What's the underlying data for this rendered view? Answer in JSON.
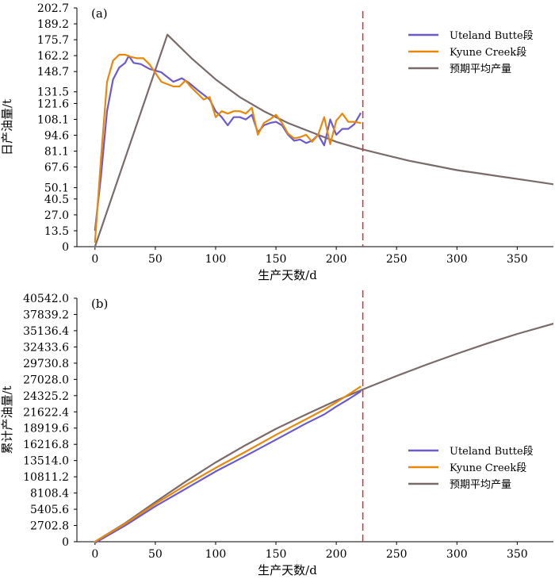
{
  "colors": {
    "uteland": "#6a5acd",
    "kyune": "#e8880a",
    "forecast": "#7a6a6a",
    "cutoff": "#d0303a",
    "axis": "#000000"
  },
  "chart_data": [
    {
      "type": "line",
      "panel_label": "(a)",
      "xlabel": "生产天数/d",
      "ylabel": "日产油量/t",
      "xlim": [
        -15,
        380
      ],
      "ylim": [
        0,
        202.7
      ],
      "xticks": [
        0,
        50,
        100,
        150,
        200,
        250,
        300,
        350
      ],
      "xtick_labels": [
        "0",
        "50",
        "100",
        "150",
        "200",
        "250",
        "300",
        "350"
      ],
      "yticks": [
        0,
        13.5,
        27.0,
        40.5,
        50.1,
        67.6,
        81.1,
        94.6,
        108.1,
        121.6,
        131.5,
        148.7,
        162.2,
        175.7,
        189.2,
        202.7
      ],
      "ytick_labels": [
        "0",
        "13.5",
        "27.0",
        "40.5",
        "50.1",
        "67.6",
        "81.1",
        "94.6",
        "108.1",
        "121.6",
        "131.5",
        "148.7",
        "162.2",
        "175.7",
        "189.2",
        "202.7"
      ],
      "cutoff_x": 222,
      "legend_position": "top-right",
      "series": [
        {
          "name": "Uteland Butte段",
          "color_key": "uteland",
          "x": [
            0,
            5,
            10,
            15,
            20,
            25,
            28,
            32,
            38,
            45,
            55,
            65,
            72,
            78,
            85,
            95,
            100,
            105,
            110,
            115,
            120,
            125,
            130,
            135,
            140,
            145,
            150,
            155,
            160,
            165,
            170,
            175,
            180,
            185,
            190,
            195,
            200,
            205,
            210,
            215,
            220
          ],
          "values": [
            14,
            60,
            115,
            142,
            152,
            156,
            162,
            156,
            155,
            151,
            148,
            140,
            143,
            139,
            133,
            125,
            115,
            110,
            103,
            110,
            110,
            108,
            112,
            97,
            103,
            105,
            106,
            103,
            95,
            90,
            91,
            88,
            90,
            95,
            86,
            108,
            95,
            100,
            100,
            104,
            113
          ]
        },
        {
          "name": "Kyune Creek段",
          "color_key": "kyune",
          "x": [
            0,
            5,
            10,
            15,
            20,
            25,
            30,
            35,
            40,
            45,
            55,
            65,
            70,
            75,
            80,
            90,
            95,
            100,
            105,
            110,
            115,
            120,
            125,
            130,
            135,
            140,
            145,
            150,
            155,
            160,
            165,
            170,
            175,
            180,
            185,
            190,
            195,
            200,
            205,
            210,
            215,
            220
          ],
          "values": [
            4,
            75,
            140,
            158,
            163,
            163,
            161,
            160,
            160,
            155,
            140,
            136,
            136,
            141,
            135,
            125,
            127,
            110,
            115,
            113,
            115,
            115,
            113,
            118,
            95,
            105,
            108,
            112,
            105,
            96,
            92,
            93,
            95,
            89,
            95,
            110,
            87,
            107,
            113,
            106,
            106,
            105
          ]
        },
        {
          "name": "预期平均产量",
          "color_key": "forecast",
          "x": [
            0,
            60,
            80,
            100,
            120,
            140,
            160,
            180,
            200,
            220,
            240,
            260,
            280,
            300,
            320,
            340,
            360,
            380
          ],
          "values": [
            0,
            180,
            160,
            142,
            127,
            115,
            105,
            97,
            89,
            83,
            78,
            73,
            69,
            65,
            62,
            59,
            56,
            53
          ]
        }
      ]
    },
    {
      "type": "line",
      "panel_label": "(b)",
      "xlabel": "生产天数/d",
      "ylabel": "累计产油量/t",
      "xlim": [
        -15,
        380
      ],
      "ylim": [
        0,
        40542.0
      ],
      "xticks": [
        0,
        50,
        100,
        150,
        200,
        250,
        300,
        350
      ],
      "xtick_labels": [
        "0",
        "50",
        "100",
        "150",
        "200",
        "250",
        "300",
        "350"
      ],
      "yticks": [
        0,
        2702.8,
        5405.6,
        8108.4,
        10811.2,
        13514.0,
        16216.8,
        18919.6,
        21622.4,
        24325.2,
        27028.0,
        29730.8,
        32433.6,
        35136.4,
        37839.2,
        40542.0
      ],
      "ytick_labels": [
        "0",
        "2702.8",
        "5405.6",
        "8108.4",
        "10811.2",
        "13514.0",
        "16216.8",
        "18919.6",
        "21622.4",
        "24325.2",
        "27028.0",
        "29730.8",
        "32433.6",
        "35136.4",
        "37839.2",
        "40542.0"
      ],
      "cutoff_x": 222,
      "legend_position": "center-right",
      "series": [
        {
          "name": "Uteland Butte段",
          "color_key": "uteland",
          "x": [
            0,
            25,
            50,
            75,
            100,
            125,
            150,
            175,
            190,
            200,
            210,
            220
          ],
          "values": [
            -200,
            2700,
            5900,
            8800,
            11700,
            14300,
            17000,
            19700,
            21200,
            22500,
            23700,
            25000
          ]
        },
        {
          "name": "Kyune Creek段",
          "color_key": "kyune",
          "x": [
            0,
            25,
            50,
            75,
            100,
            125,
            150,
            175,
            190,
            200,
            210,
            220
          ],
          "values": [
            0,
            3000,
            6300,
            9400,
            12300,
            15000,
            17800,
            20400,
            22000,
            23200,
            24500,
            25800
          ]
        },
        {
          "name": "预期平均产量",
          "color_key": "forecast",
          "x": [
            0,
            25,
            50,
            75,
            100,
            125,
            150,
            175,
            200,
            225,
            250,
            275,
            300,
            325,
            350,
            380
          ],
          "values": [
            0,
            3100,
            6600,
            10000,
            13200,
            16100,
            18800,
            21200,
            23500,
            25600,
            27600,
            29500,
            31300,
            33000,
            34600,
            36300
          ]
        }
      ]
    }
  ]
}
